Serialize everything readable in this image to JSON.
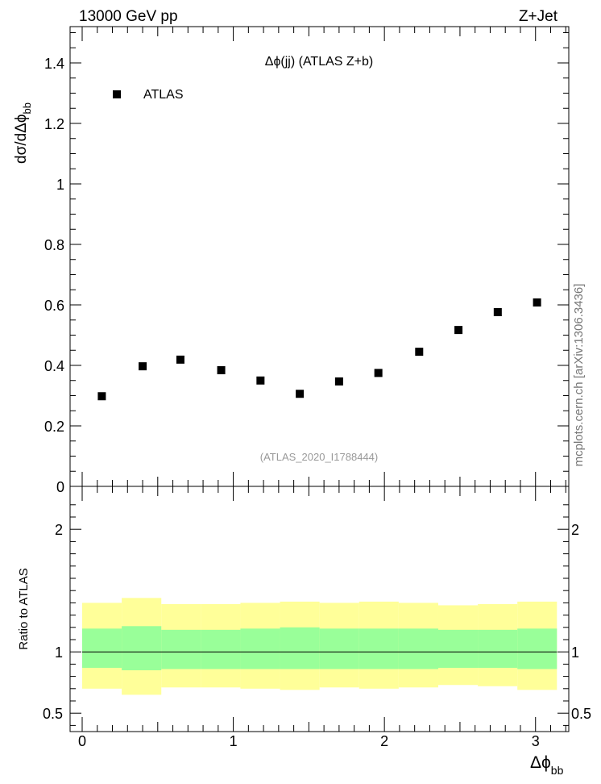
{
  "header": {
    "left": "13000 GeV pp",
    "right": "Z+Jet"
  },
  "side_label": "mcplots.cern.ch [arXiv:1306.3436]",
  "chart_data": [
    {
      "type": "scatter",
      "title": "Δϕ(jj) (ATLAS Z+b)",
      "ylabel_main": "dσ/dΔϕ",
      "ylabel_sub": "bb",
      "watermark": "(ATLAS_2020_I1788444)",
      "xlim": [
        -0.08,
        3.22
      ],
      "ylim": [
        0,
        1.52
      ],
      "yticks": [
        0,
        0.2,
        0.4,
        0.6,
        0.8,
        1,
        1.2,
        1.4
      ],
      "ytick_labels": [
        "0",
        "0.2",
        "0.4",
        "0.6",
        "0.8",
        "1",
        "1.2",
        "1.4"
      ],
      "legend": {
        "label": "ATLAS",
        "placement": "top-left"
      },
      "series": [
        {
          "name": "ATLAS",
          "x": [
            0.13,
            0.4,
            0.65,
            0.92,
            1.18,
            1.44,
            1.7,
            1.96,
            2.23,
            2.49,
            2.75,
            3.01
          ],
          "y": [
            0.298,
            0.397,
            0.419,
            0.384,
            0.35,
            0.306,
            0.347,
            0.375,
            0.445,
            0.517,
            0.576,
            0.608
          ]
        }
      ]
    },
    {
      "type": "area",
      "ylabel": "Ratio to ATLAS",
      "xlabel_main": "Δϕ",
      "xlabel_sub": "bb",
      "xlim": [
        -0.08,
        3.22
      ],
      "ylim": [
        0.35,
        2.35
      ],
      "xticks": [
        0,
        1,
        2,
        3
      ],
      "xtick_labels": [
        "0",
        "1",
        "2",
        "3"
      ],
      "yticks": [
        0.5,
        1,
        2
      ],
      "ytick_labels": [
        "0.5",
        "1",
        "2"
      ],
      "reference_line": 1,
      "bins": [
        0,
        0.2618,
        0.5236,
        0.7854,
        1.0472,
        1.309,
        1.5708,
        1.8326,
        2.0944,
        2.3562,
        2.618,
        2.8798,
        3.1416
      ],
      "band_outer": {
        "color": "#ffff99",
        "low": [
          0.7,
          0.65,
          0.71,
          0.71,
          0.7,
          0.69,
          0.71,
          0.7,
          0.71,
          0.73,
          0.72,
          0.69
        ],
        "high": [
          1.4,
          1.44,
          1.39,
          1.39,
          1.4,
          1.41,
          1.4,
          1.41,
          1.4,
          1.38,
          1.39,
          1.41
        ]
      },
      "band_inner": {
        "color": "#99ff99",
        "low": [
          0.87,
          0.85,
          0.86,
          0.86,
          0.86,
          0.86,
          0.86,
          0.86,
          0.86,
          0.87,
          0.87,
          0.86
        ],
        "high": [
          1.19,
          1.21,
          1.18,
          1.18,
          1.19,
          1.2,
          1.19,
          1.19,
          1.19,
          1.18,
          1.18,
          1.19
        ]
      }
    }
  ]
}
